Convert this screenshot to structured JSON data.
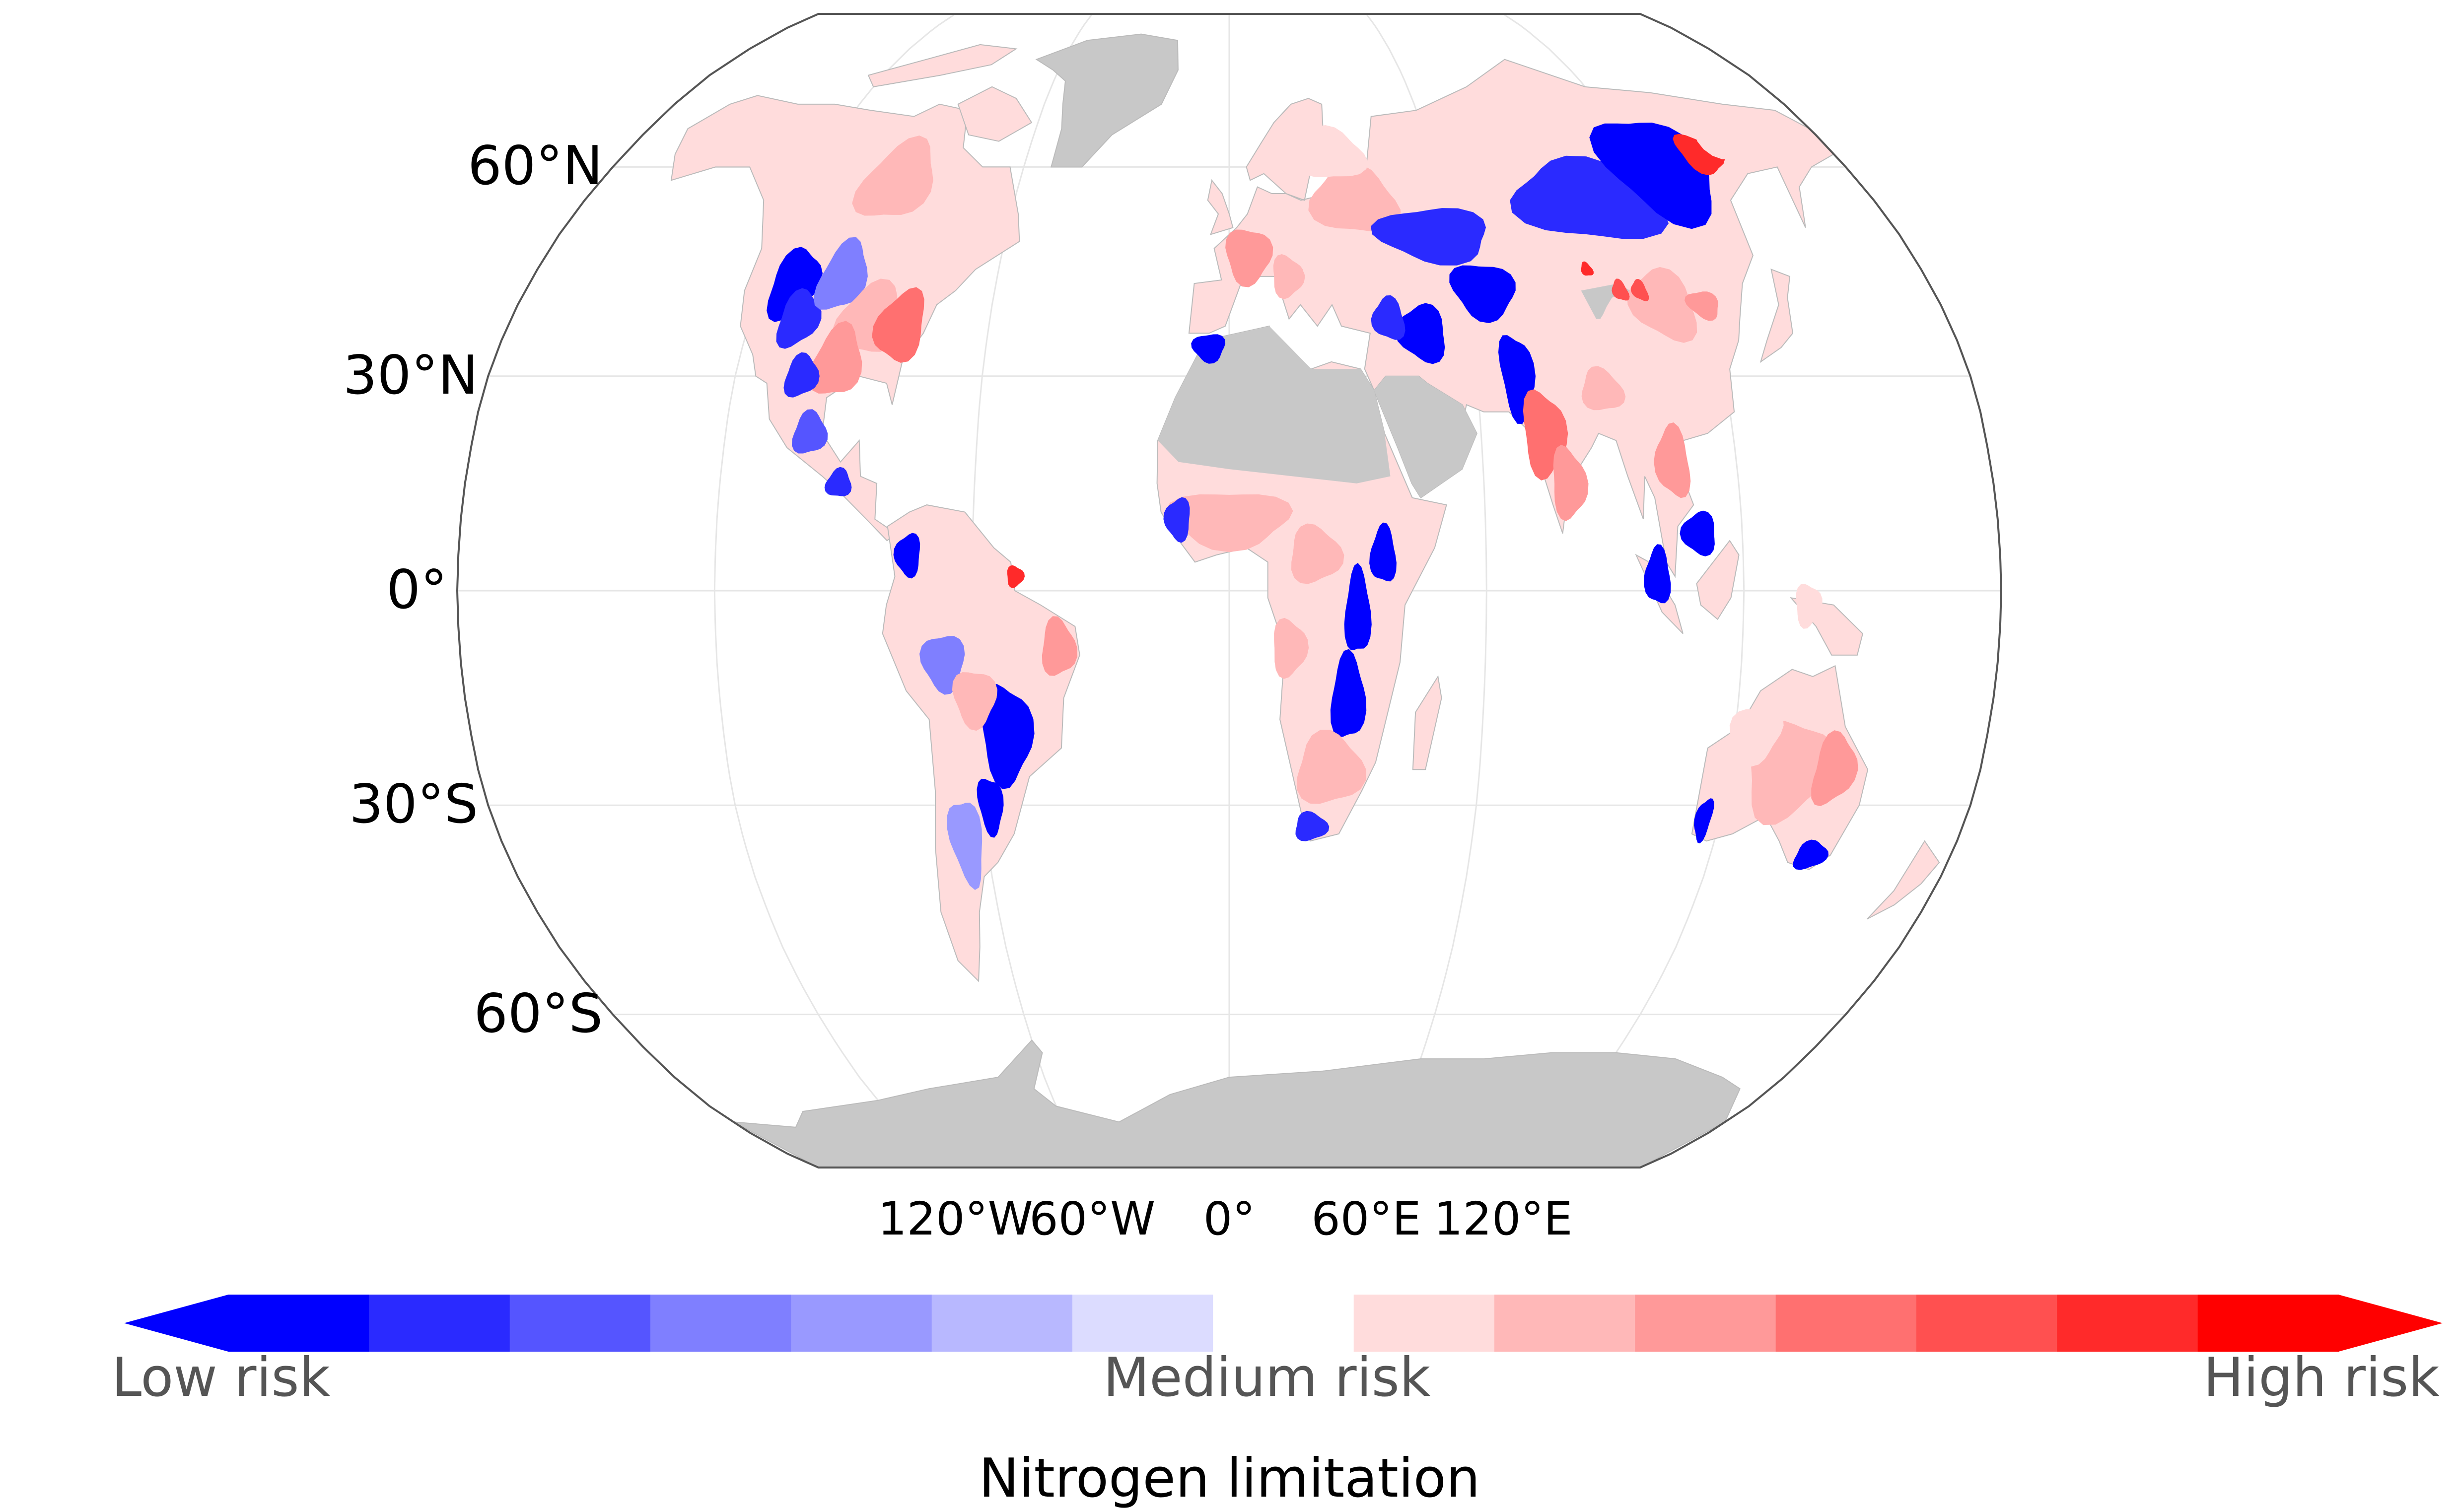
{
  "map": {
    "projection": "Robinson",
    "ocean_color": "#ffffff",
    "no_data_color": "#c8c8c8",
    "outline_color": "#555555",
    "graticule_color": "#e6e6e6",
    "lat_labels": [
      {
        "id": "lat-60n",
        "text": "60°N",
        "lat": 60
      },
      {
        "id": "lat-30n",
        "text": "30°N",
        "lat": 30
      },
      {
        "id": "lat-0",
        "text": "0°",
        "lat": 0
      },
      {
        "id": "lat-30s",
        "text": "30°S",
        "lat": -30
      },
      {
        "id": "lat-60s",
        "text": "60°S",
        "lat": -60
      }
    ],
    "lon_labels": [
      {
        "id": "lon-120w",
        "text": "120°W",
        "lon": -120
      },
      {
        "id": "lon-60w",
        "text": "60°W",
        "lon": -60
      },
      {
        "id": "lon-0",
        "text": "0°",
        "lon": 0
      },
      {
        "id": "lon-60e",
        "text": "60°E",
        "lon": 60
      },
      {
        "id": "lon-120e",
        "text": "120°E",
        "lon": 120
      }
    ],
    "legend": {
      "title": "Nitrogen limitation",
      "low_label": "Low risk",
      "mid_label": "Medium risk",
      "high_label": "High risk",
      "blue_colors": [
        "#0000ff",
        "#2a2aff",
        "#5555ff",
        "#7f7fff",
        "#9999ff",
        "#b8b8ff",
        "#dcdcff"
      ],
      "white_color": "#ffffff",
      "red_colors": [
        "#ffdcdc",
        "#ffb8b8",
        "#ff9999",
        "#ff7070",
        "#ff5050",
        "#ff2a2a",
        "#ff0000"
      ]
    }
  }
}
